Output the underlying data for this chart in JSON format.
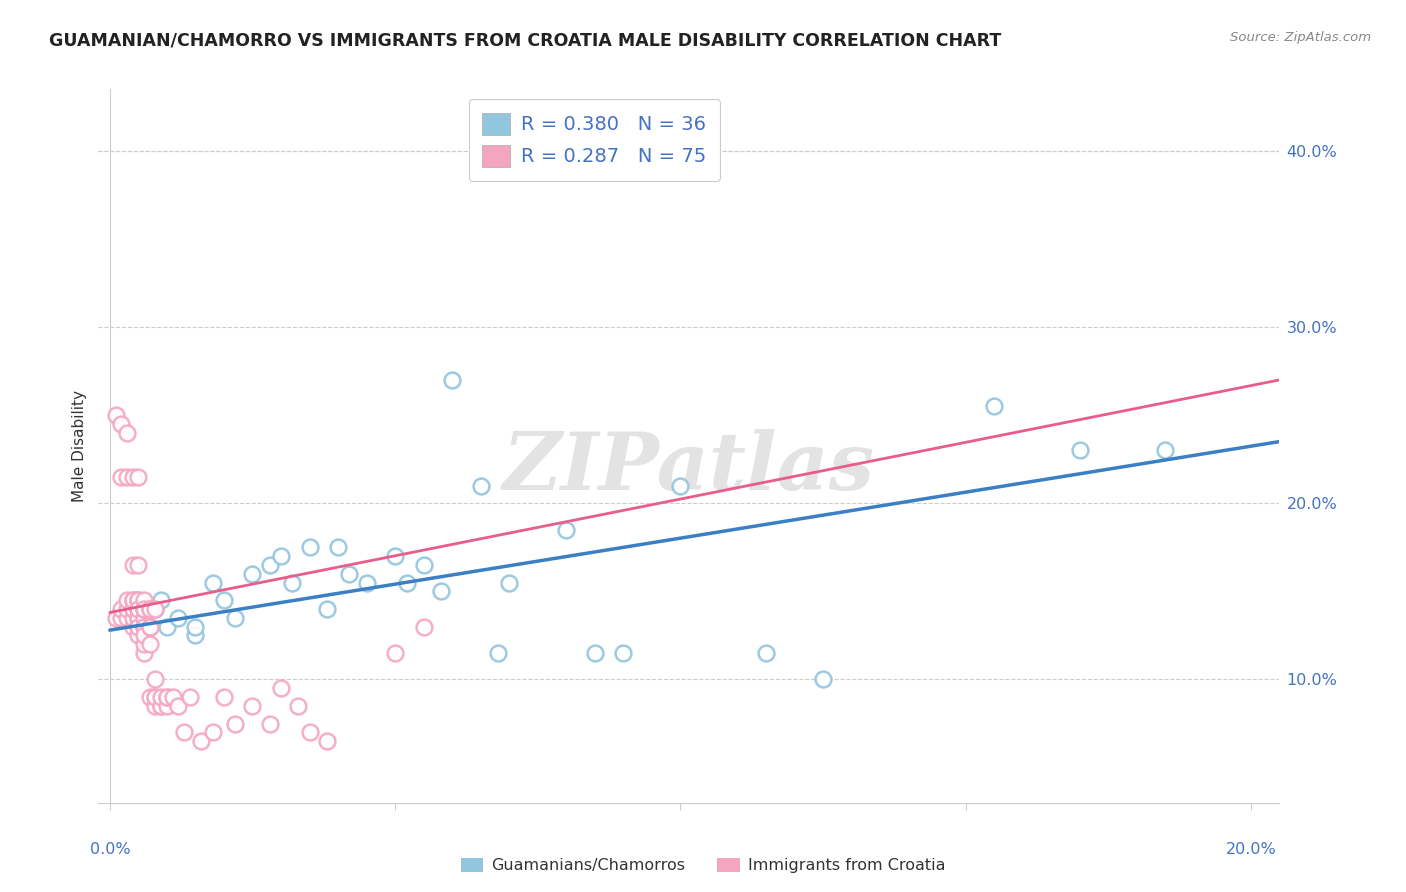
{
  "title": "GUAMANIAN/CHAMORRO VS IMMIGRANTS FROM CROATIA MALE DISABILITY CORRELATION CHART",
  "source": "Source: ZipAtlas.com",
  "ylabel": "Male Disability",
  "ytick_labels": [
    "10.0%",
    "20.0%",
    "30.0%",
    "40.0%"
  ],
  "ytick_values": [
    0.1,
    0.2,
    0.3,
    0.4
  ],
  "xlim": [
    -0.002,
    0.205
  ],
  "ylim": [
    0.03,
    0.435
  ],
  "blue_color": "#92c5de",
  "pink_color": "#f4a6c0",
  "blue_line_color": "#3b7fc4",
  "pink_line_color": "#e85d8a",
  "watermark": "ZIPatlas",
  "blue_scatter_x": [
    0.005,
    0.008,
    0.009,
    0.01,
    0.012,
    0.015,
    0.015,
    0.018,
    0.02,
    0.022,
    0.025,
    0.028,
    0.03,
    0.032,
    0.035,
    0.038,
    0.04,
    0.042,
    0.045,
    0.05,
    0.052,
    0.055,
    0.058,
    0.06,
    0.065,
    0.068,
    0.07,
    0.08,
    0.085,
    0.09,
    0.1,
    0.115,
    0.125,
    0.155,
    0.17,
    0.185
  ],
  "blue_scatter_y": [
    0.135,
    0.14,
    0.145,
    0.13,
    0.135,
    0.125,
    0.13,
    0.155,
    0.145,
    0.135,
    0.16,
    0.165,
    0.17,
    0.155,
    0.175,
    0.14,
    0.175,
    0.16,
    0.155,
    0.17,
    0.155,
    0.165,
    0.15,
    0.27,
    0.21,
    0.115,
    0.155,
    0.185,
    0.115,
    0.115,
    0.21,
    0.115,
    0.1,
    0.255,
    0.23,
    0.23
  ],
  "pink_scatter_x": [
    0.001,
    0.001,
    0.002,
    0.002,
    0.002,
    0.002,
    0.003,
    0.003,
    0.003,
    0.003,
    0.003,
    0.004,
    0.004,
    0.004,
    0.004,
    0.004,
    0.004,
    0.004,
    0.004,
    0.005,
    0.005,
    0.005,
    0.005,
    0.005,
    0.005,
    0.005,
    0.005,
    0.005,
    0.005,
    0.005,
    0.005,
    0.005,
    0.006,
    0.006,
    0.006,
    0.006,
    0.006,
    0.006,
    0.006,
    0.006,
    0.006,
    0.006,
    0.007,
    0.007,
    0.007,
    0.007,
    0.007,
    0.007,
    0.008,
    0.008,
    0.008,
    0.008,
    0.008,
    0.009,
    0.009,
    0.009,
    0.01,
    0.01,
    0.01,
    0.011,
    0.012,
    0.013,
    0.014,
    0.016,
    0.018,
    0.02,
    0.022,
    0.025,
    0.028,
    0.03,
    0.033,
    0.035,
    0.038,
    0.05,
    0.055
  ],
  "pink_scatter_y": [
    0.135,
    0.25,
    0.135,
    0.14,
    0.215,
    0.245,
    0.135,
    0.14,
    0.145,
    0.215,
    0.24,
    0.13,
    0.135,
    0.14,
    0.145,
    0.165,
    0.215,
    0.14,
    0.145,
    0.13,
    0.135,
    0.14,
    0.145,
    0.215,
    0.165,
    0.14,
    0.145,
    0.135,
    0.145,
    0.125,
    0.14,
    0.13,
    0.115,
    0.12,
    0.135,
    0.14,
    0.13,
    0.14,
    0.145,
    0.13,
    0.14,
    0.125,
    0.13,
    0.14,
    0.13,
    0.14,
    0.12,
    0.09,
    0.09,
    0.1,
    0.085,
    0.14,
    0.09,
    0.085,
    0.085,
    0.09,
    0.085,
    0.09,
    0.09,
    0.09,
    0.085,
    0.07,
    0.09,
    0.065,
    0.07,
    0.09,
    0.075,
    0.085,
    0.075,
    0.095,
    0.085,
    0.07,
    0.065,
    0.115,
    0.13
  ],
  "blue_trend_x": [
    0.0,
    0.205
  ],
  "blue_trend_y": [
    0.128,
    0.235
  ],
  "pink_trend_x": [
    0.0,
    0.205
  ],
  "pink_trend_y": [
    0.138,
    0.27
  ]
}
